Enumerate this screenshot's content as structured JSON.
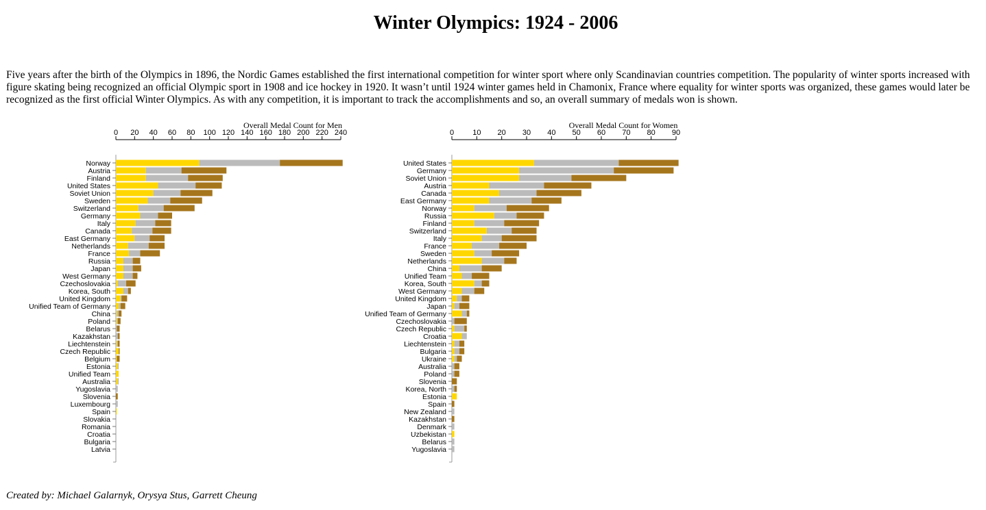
{
  "page": {
    "title": "Winter Olympics: 1924 - 2006",
    "intro": "Five years after the birth of the Olympics in 1896, the Nordic Games established the first international competition for winter sport where only Scandinavian countries competition. The popularity of winter sports increased with figure skating being recognized an official Olympic sport in 1908 and ice hockey in 1920. It wasn’t until 1924 winter games held in Chamonix, France where equality for winter sports was organized, these games would later be recognized as the first official Winter Olympics. As with any competition, it is important to track the accomplishments and so, an overall summary of medals won is shown.",
    "footer": "Created by: Michael Galarnyk, Orysya Stus, Garrett Cheung"
  },
  "colors": {
    "gold": "#ffd700",
    "silver": "#bbbbbb",
    "bronze": "#a6761d",
    "axis": "#000000"
  },
  "chart_data": [
    {
      "type": "bar",
      "stacked": true,
      "orientation": "horizontal",
      "title": "Overall Medal Count for Men",
      "xlim": [
        0,
        240
      ],
      "xticks": [
        0,
        20,
        40,
        60,
        80,
        100,
        120,
        140,
        160,
        180,
        200,
        220,
        240
      ],
      "grid": false,
      "categories": [
        "Norway",
        "Austria",
        "Finland",
        "United States",
        "Soviet Union",
        "Sweden",
        "Switzerland",
        "Germany",
        "Italy",
        "Canada",
        "East Germany",
        "Netherlands",
        "France",
        "Russia",
        "Japan",
        "West Germany",
        "Czechoslovakia",
        "Korea, South",
        "United Kingdom",
        "Unified Team of Germany",
        "China",
        "Poland",
        "Belarus",
        "Kazakhstan",
        "Liechtenstein",
        "Czech Republic",
        "Belgium",
        "Estonia",
        "Unified Team",
        "Australia",
        "Yugoslavia",
        "Slovenia",
        "Luxembourg",
        "Spain",
        "Slovakia",
        "Romania",
        "Croatia",
        "Bulgaria",
        "Latvia"
      ],
      "series": [
        {
          "values": [
            89,
            32,
            32,
            45,
            40,
            34,
            24,
            26,
            21,
            17,
            20,
            13,
            14,
            8,
            8,
            8,
            2,
            8,
            5,
            3,
            1,
            1,
            0,
            0,
            1,
            3,
            1,
            2,
            3,
            2,
            0,
            0,
            0,
            1,
            0,
            0,
            0,
            0,
            0
          ]
        },
        {
          "values": [
            86,
            38,
            45,
            40,
            29,
            24,
            27,
            19,
            21,
            22,
            16,
            22,
            12,
            10,
            10,
            10,
            9,
            5,
            1,
            2,
            2,
            1,
            1,
            2,
            1,
            0,
            0,
            1,
            0,
            1,
            2,
            0,
            2,
            0,
            0,
            0,
            0,
            0,
            0
          ]
        },
        {
          "values": [
            67,
            48,
            37,
            28,
            34,
            34,
            33,
            15,
            17,
            20,
            16,
            17,
            21,
            8,
            9,
            5,
            10,
            3,
            6,
            5,
            3,
            3,
            3,
            2,
            2,
            1,
            3,
            0,
            0,
            0,
            0,
            2,
            0,
            0,
            0,
            0,
            0,
            0,
            0
          ]
        }
      ]
    },
    {
      "type": "bar",
      "stacked": true,
      "orientation": "horizontal",
      "title": "Overall Medal Count for Women",
      "xlim": [
        0,
        90
      ],
      "xticks": [
        0,
        10,
        20,
        30,
        40,
        50,
        60,
        70,
        80,
        90
      ],
      "grid": false,
      "categories": [
        "United States",
        "Germany",
        "Soviet Union",
        "Austria",
        "Canada",
        "East Germany",
        "Norway",
        "Russia",
        "Finland",
        "Switzerland",
        "Italy",
        "France",
        "Sweden",
        "Netherlands",
        "China",
        "Unified Team",
        "Korea, South",
        "West Germany",
        "United Kingdom",
        "Japan",
        "Unified Team of Germany",
        "Czechoslovakia",
        "Czech Republic",
        "Croatia",
        "Liechtenstein",
        "Bulgaria",
        "Ukraine",
        "Australia",
        "Poland",
        "Slovenia",
        "Korea, North",
        "Estonia",
        "Spain",
        "New Zealand",
        "Kazakhstan",
        "Denmark",
        "Uzbekistan",
        "Belarus",
        "Yugoslavia"
      ],
      "series": [
        {
          "values": [
            33,
            27,
            27,
            15,
            19,
            15,
            9,
            17,
            9,
            14,
            12,
            8,
            9,
            12,
            3,
            4,
            9,
            4,
            2,
            1,
            4,
            0,
            1,
            4,
            1,
            1,
            1,
            0,
            0,
            0,
            0,
            2,
            0,
            0,
            0,
            0,
            1,
            0,
            0
          ]
        },
        {
          "values": [
            34,
            38,
            21,
            22,
            15,
            17,
            13,
            9,
            12,
            10,
            8,
            11,
            7,
            9,
            9,
            4,
            3,
            5,
            2,
            2,
            2,
            1,
            4,
            2,
            2,
            2,
            1,
            1,
            1,
            0,
            1,
            0,
            0,
            1,
            0,
            1,
            0,
            1,
            1
          ]
        },
        {
          "values": [
            24,
            24,
            22,
            19,
            18,
            12,
            17,
            11,
            14,
            10,
            14,
            11,
            11,
            5,
            8,
            7,
            3,
            4,
            3,
            4,
            1,
            5,
            1,
            0,
            2,
            2,
            2,
            2,
            2,
            2,
            1,
            0,
            1,
            0,
            1,
            0,
            0,
            0,
            0
          ]
        }
      ]
    }
  ]
}
